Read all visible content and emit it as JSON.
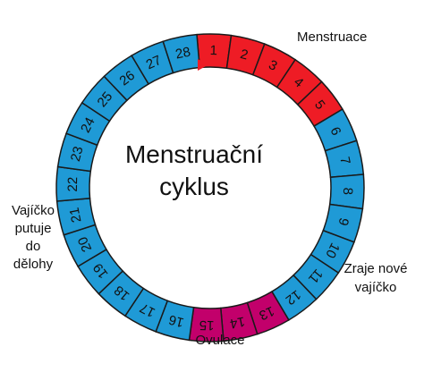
{
  "title": {
    "line1": "Menstruační",
    "line2": "cyklus"
  },
  "labels": {
    "menstruation": "Menstruace",
    "new_egg_line1": "Zraje nové",
    "new_egg_line2": "vajíčko",
    "ovulation": "Ovulace",
    "egg_travel_line1": "Vajíčko",
    "egg_travel_line2": "putuje",
    "egg_travel_line3": "do",
    "egg_travel_line4": "dělohy"
  },
  "colors": {
    "menstruation": "#ee1c25",
    "follicular": "#1f9ad6",
    "ovulation": "#c2006b",
    "luteal": "#1f9ad6",
    "segment_border": "#1a1a1a",
    "marker": "#ee1c25"
  },
  "days": [
    {
      "label": "1",
      "phase": "menstruation"
    },
    {
      "label": "2",
      "phase": "menstruation"
    },
    {
      "label": "3",
      "phase": "menstruation"
    },
    {
      "label": "4",
      "phase": "menstruation"
    },
    {
      "label": "5",
      "phase": "menstruation"
    },
    {
      "label": "6",
      "phase": "follicular"
    },
    {
      "label": "7",
      "phase": "follicular"
    },
    {
      "label": "8",
      "phase": "follicular"
    },
    {
      "label": "9",
      "phase": "follicular"
    },
    {
      "label": "10",
      "phase": "follicular"
    },
    {
      "label": "11",
      "phase": "follicular"
    },
    {
      "label": "12",
      "phase": "follicular"
    },
    {
      "label": "13",
      "phase": "ovulation"
    },
    {
      "label": "14",
      "phase": "ovulation"
    },
    {
      "label": "15",
      "phase": "ovulation"
    },
    {
      "label": "16",
      "phase": "luteal"
    },
    {
      "label": "17",
      "phase": "luteal"
    },
    {
      "label": "18",
      "phase": "luteal"
    },
    {
      "label": "19",
      "phase": "luteal"
    },
    {
      "label": "20",
      "phase": "luteal"
    },
    {
      "label": "21",
      "phase": "luteal"
    },
    {
      "label": "22",
      "phase": "luteal"
    },
    {
      "label": "23",
      "phase": "luteal"
    },
    {
      "label": "24",
      "phase": "luteal"
    },
    {
      "label": "25",
      "phase": "luteal"
    },
    {
      "label": "26",
      "phase": "luteal"
    },
    {
      "label": "27",
      "phase": "luteal"
    },
    {
      "label": "28",
      "phase": "luteal"
    }
  ]
}
